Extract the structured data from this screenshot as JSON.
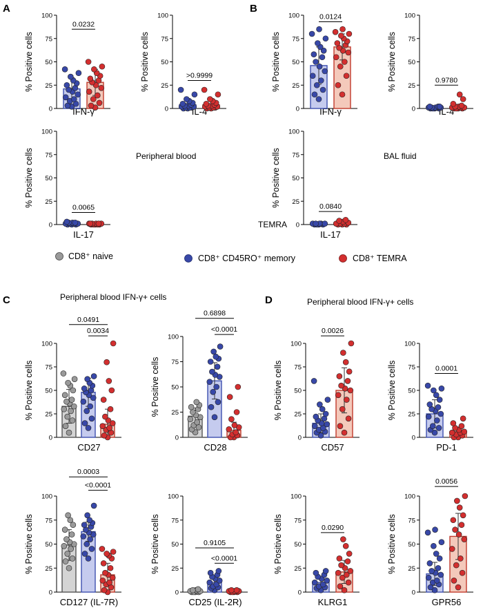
{
  "colors": {
    "naive_fill": "#d4d4d4",
    "naive_edge": "#555555",
    "naive_dot": "#9a9a9a",
    "memory_fill": "#c5cbee",
    "memory_edge": "#3d4fae",
    "memory_dot": "#3848a8",
    "temra_fill": "#f4c9bb",
    "temra_edge": "#c0392b",
    "temra_dot": "#d32f2f"
  },
  "panel_labels": {
    "a": "A",
    "b": "B",
    "c": "C",
    "d": "D"
  },
  "annotations": {
    "peripheral_blood": "Peripheral blood",
    "bal_fluid": "BAL fluid",
    "c_title": "Peripheral blood IFN-γ+ cells",
    "d_title": "Peripheral blood IFN-γ+ cells",
    "stray_temra": "TEMRA"
  },
  "legend": [
    {
      "label": "CD8⁺ naive",
      "color": "#9a9a9a"
    },
    {
      "label": "CD8⁺ CD45RO⁺ memory",
      "color": "#3848a8"
    },
    {
      "label": "CD8⁺ TEMRA",
      "color": "#d32f2f"
    }
  ],
  "chart_data": [
    {
      "id": "a-ifng",
      "type": "bar",
      "panel": "A",
      "ylabel": "% Positive cells",
      "xlabel": "IFN-γ",
      "ylim": [
        0,
        100
      ],
      "yticks": [
        0,
        25,
        50,
        75,
        100
      ],
      "groups": [
        "memory",
        "temra"
      ],
      "bar_means": [
        21,
        28
      ],
      "sd": [
        12,
        14
      ],
      "points": [
        [
          2,
          3,
          5,
          8,
          10,
          12,
          15,
          18,
          20,
          22,
          25,
          27,
          30,
          34,
          38,
          42
        ],
        [
          1,
          3,
          6,
          10,
          14,
          18,
          22,
          25,
          28,
          30,
          32,
          35,
          38,
          42,
          45,
          50
        ]
      ],
      "comparisons": [
        {
          "from": 0,
          "to": 1,
          "p": "0.0232",
          "y": 85
        }
      ]
    },
    {
      "id": "a-il4",
      "type": "bar",
      "panel": "A",
      "ylabel": "% Positive cells",
      "xlabel": "IL-4",
      "ylim": [
        0,
        100
      ],
      "yticks": [
        0,
        25,
        50,
        75,
        100
      ],
      "groups": [
        "memory",
        "temra"
      ],
      "bar_means": [
        4,
        4
      ],
      "sd": [
        4,
        4
      ],
      "points": [
        [
          0,
          0,
          1,
          1,
          1,
          2,
          2,
          3,
          3,
          4,
          5,
          6,
          8,
          10,
          15,
          20
        ],
        [
          0,
          0,
          1,
          1,
          1,
          2,
          2,
          3,
          3,
          4,
          5,
          6,
          8,
          10,
          15,
          20
        ]
      ],
      "comparisons": [
        {
          "from": 0,
          "to": 1,
          "p": ">0.9999",
          "y": 30
        }
      ]
    },
    {
      "id": "a-il17",
      "type": "bar",
      "panel": "A",
      "ylabel": "% Positive cells",
      "xlabel": "IL-17",
      "ylim": [
        0,
        100
      ],
      "yticks": [
        0,
        25,
        50,
        75,
        100
      ],
      "groups": [
        "memory",
        "temra"
      ],
      "bar_means": [
        1,
        0.5
      ],
      "sd": [
        0.5,
        0.3
      ],
      "points": [
        [
          0,
          0,
          0,
          1,
          1,
          1,
          1,
          2,
          2,
          2,
          3
        ],
        [
          0,
          0,
          0,
          0,
          0,
          1,
          1,
          1,
          1,
          1,
          1
        ]
      ],
      "comparisons": [
        {
          "from": 0,
          "to": 1,
          "p": "0.0065",
          "y": 13
        }
      ]
    },
    {
      "id": "b-ifng",
      "type": "bar",
      "panel": "B",
      "ylabel": "% Positive cells",
      "xlabel": "IFN-γ",
      "ylim": [
        0,
        100
      ],
      "yticks": [
        0,
        25,
        50,
        75,
        100
      ],
      "groups": [
        "memory",
        "temra"
      ],
      "bar_means": [
        46,
        66
      ],
      "sd": [
        20,
        14
      ],
      "points": [
        [
          10,
          15,
          20,
          25,
          30,
          35,
          40,
          45,
          50,
          55,
          58,
          62,
          66,
          70,
          75,
          80,
          85
        ],
        [
          15,
          25,
          35,
          45,
          50,
          55,
          60,
          62,
          65,
          68,
          70,
          72,
          75,
          78,
          80,
          82,
          85
        ]
      ],
      "comparisons": [
        {
          "from": 0,
          "to": 1,
          "p": "0.0124",
          "y": 93
        }
      ]
    },
    {
      "id": "b-il4",
      "type": "bar",
      "panel": "B",
      "ylabel": "% Positive cells",
      "xlabel": "IL-4",
      "ylim": [
        0,
        100
      ],
      "yticks": [
        0,
        25,
        50,
        75,
        100
      ],
      "groups": [
        "memory",
        "temra"
      ],
      "bar_means": [
        1,
        2
      ],
      "sd": [
        0.8,
        2.5
      ],
      "points": [
        [
          0,
          0,
          0,
          0,
          1,
          1,
          1,
          1,
          1,
          2,
          2,
          2
        ],
        [
          0,
          0,
          0,
          0,
          1,
          1,
          1,
          2,
          2,
          3,
          5,
          10,
          15
        ]
      ],
      "comparisons": [
        {
          "from": 0,
          "to": 1,
          "p": "0.9780",
          "y": 25
        }
      ]
    },
    {
      "id": "b-il17",
      "type": "bar",
      "panel": "B",
      "ylabel": "% Positive cells",
      "xlabel": "IL-17",
      "ylim": [
        0,
        100
      ],
      "yticks": [
        0,
        25,
        50,
        75,
        100
      ],
      "groups": [
        "memory",
        "temra"
      ],
      "bar_means": [
        1,
        2
      ],
      "sd": [
        0.5,
        1.5
      ],
      "points": [
        [
          0,
          0,
          0,
          0,
          1,
          1,
          1,
          1,
          1
        ],
        [
          0,
          0,
          0,
          1,
          1,
          1,
          2,
          3,
          4,
          5
        ]
      ],
      "comparisons": [
        {
          "from": 0,
          "to": 1,
          "p": "0.0840",
          "y": 14
        }
      ]
    },
    {
      "id": "c-cd27",
      "type": "bar",
      "panel": "C",
      "ylabel": "% Positive cells",
      "xlabel": "CD27",
      "ylim": [
        0,
        100
      ],
      "yticks": [
        0,
        25,
        50,
        75,
        100
      ],
      "groups": [
        "naive",
        "memory",
        "temra"
      ],
      "bar_means": [
        33,
        48,
        14
      ],
      "sd": [
        18,
        15,
        16
      ],
      "points": [
        [
          5,
          12,
          18,
          22,
          28,
          30,
          33,
          36,
          38,
          40,
          45,
          50,
          55,
          58,
          62,
          68
        ],
        [
          10,
          15,
          20,
          28,
          33,
          38,
          42,
          45,
          48,
          50,
          52,
          55,
          58,
          62,
          65
        ],
        [
          0,
          2,
          5,
          8,
          10,
          12,
          15,
          18,
          22,
          30,
          40,
          50,
          60,
          80,
          100
        ]
      ],
      "comparisons": [
        {
          "from": 0,
          "to": 2,
          "p": "0.0491",
          "y": 120
        },
        {
          "from": 1,
          "to": 2,
          "p": "0.0034",
          "y": 108
        }
      ]
    },
    {
      "id": "c-cd28",
      "type": "bar",
      "panel": "C",
      "ylabel": "% Positive cells",
      "xlabel": "CD28",
      "ylim": [
        0,
        100
      ],
      "yticks": [
        0,
        25,
        50,
        75,
        100
      ],
      "groups": [
        "naive",
        "memory",
        "temra"
      ],
      "bar_means": [
        21,
        56,
        7
      ],
      "sd": [
        8,
        18,
        8
      ],
      "points": [
        [
          5,
          8,
          10,
          12,
          15,
          18,
          20,
          22,
          25,
          28,
          30,
          32,
          35
        ],
        [
          20,
          30,
          35,
          45,
          50,
          55,
          60,
          62,
          65,
          70,
          75,
          78,
          80,
          85,
          90
        ],
        [
          0,
          0,
          2,
          3,
          5,
          8,
          10,
          12,
          18,
          25,
          40,
          50
        ]
      ],
      "comparisons": [
        {
          "from": 0,
          "to": 2,
          "p": "0.6898",
          "y": 118
        },
        {
          "from": 1,
          "to": 2,
          "p": "<0.0001",
          "y": 102
        }
      ]
    },
    {
      "id": "c-cd127",
      "type": "bar",
      "panel": "C",
      "ylabel": "% Positive cells",
      "xlabel": "CD127 (IL-7R)",
      "ylim": [
        0,
        100
      ],
      "yticks": [
        0,
        25,
        50,
        75,
        100
      ],
      "groups": [
        "naive",
        "memory",
        "temra"
      ],
      "bar_means": [
        49,
        63,
        18
      ],
      "sd": [
        16,
        10,
        12
      ],
      "points": [
        [
          25,
          32,
          35,
          40,
          45,
          48,
          50,
          52,
          55,
          60,
          65,
          70,
          75,
          80
        ],
        [
          35,
          40,
          45,
          50,
          55,
          58,
          60,
          62,
          65,
          68,
          70,
          72,
          75,
          80,
          90
        ],
        [
          0,
          2,
          5,
          8,
          10,
          12,
          15,
          18,
          20,
          25,
          30,
          35,
          38,
          40,
          42,
          45
        ]
      ],
      "comparisons": [
        {
          "from": 0,
          "to": 2,
          "p": "0.0003",
          "y": 120
        },
        {
          "from": 1,
          "to": 2,
          "p": "<0.0001",
          "y": 106
        }
      ]
    },
    {
      "id": "c-cd25",
      "type": "bar",
      "panel": "C",
      "ylabel": "% Positive cells",
      "xlabel": "CD25 (IL-2R)",
      "ylim": [
        0,
        100
      ],
      "yticks": [
        0,
        25,
        50,
        75,
        100
      ],
      "groups": [
        "naive",
        "memory",
        "temra"
      ],
      "bar_means": [
        1,
        10,
        1
      ],
      "sd": [
        1,
        5,
        1
      ],
      "points": [
        [
          0,
          0,
          0,
          0,
          1,
          1,
          1,
          2,
          2,
          3
        ],
        [
          2,
          4,
          5,
          6,
          8,
          10,
          12,
          14,
          16,
          18,
          20,
          22
        ],
        [
          0,
          0,
          0,
          0,
          1,
          1,
          1,
          1,
          2,
          2
        ]
      ],
      "comparisons": [
        {
          "from": 0,
          "to": 2,
          "p": "0.9105",
          "y": 46
        },
        {
          "from": 1,
          "to": 2,
          "p": "<0.0001",
          "y": 30
        }
      ]
    },
    {
      "id": "d-cd57",
      "type": "bar",
      "panel": "D",
      "ylabel": "% Positive cells",
      "xlabel": "CD57",
      "ylim": [
        0,
        100
      ],
      "yticks": [
        0,
        25,
        50,
        75,
        100
      ],
      "groups": [
        "memory",
        "temra"
      ],
      "bar_means": [
        15,
        50
      ],
      "sd": [
        10,
        24
      ],
      "points": [
        [
          2,
          5,
          6,
          8,
          10,
          12,
          14,
          15,
          18,
          20,
          22,
          25,
          30,
          35,
          40,
          60
        ],
        [
          5,
          12,
          20,
          30,
          40,
          45,
          50,
          52,
          55,
          60,
          65,
          70,
          80,
          90,
          100
        ]
      ],
      "comparisons": [
        {
          "from": 0,
          "to": 1,
          "p": "0.0026",
          "y": 108
        }
      ]
    },
    {
      "id": "d-pd1",
      "type": "bar",
      "panel": "D",
      "ylabel": "% Positive cells",
      "xlabel": "PD-1",
      "ylim": [
        0,
        100
      ],
      "yticks": [
        0,
        25,
        50,
        75,
        100
      ],
      "groups": [
        "memory",
        "temra"
      ],
      "bar_means": [
        25,
        6
      ],
      "sd": [
        15,
        5
      ],
      "points": [
        [
          5,
          8,
          10,
          12,
          18,
          22,
          25,
          28,
          30,
          32,
          35,
          40,
          45,
          50,
          52,
          55
        ],
        [
          0,
          0,
          2,
          3,
          5,
          5,
          6,
          8,
          10,
          12,
          15,
          20
        ]
      ],
      "comparisons": [
        {
          "from": 0,
          "to": 1,
          "p": "0.0001",
          "y": 68
        }
      ]
    },
    {
      "id": "d-klrg1",
      "type": "bar",
      "panel": "D",
      "ylabel": "% Positive cells",
      "xlabel": "KLRG1",
      "ylim": [
        0,
        100
      ],
      "yticks": [
        0,
        25,
        50,
        75,
        100
      ],
      "groups": [
        "memory",
        "temra"
      ],
      "bar_means": [
        10,
        21
      ],
      "sd": [
        6,
        12
      ],
      "points": [
        [
          2,
          4,
          5,
          6,
          8,
          10,
          12,
          14,
          16,
          18,
          20,
          22
        ],
        [
          2,
          6,
          10,
          15,
          18,
          20,
          22,
          25,
          28,
          32,
          35,
          40,
          48,
          55
        ]
      ],
      "comparisons": [
        {
          "from": 0,
          "to": 1,
          "p": "0.0290",
          "y": 62
        }
      ]
    },
    {
      "id": "d-gpr56",
      "type": "bar",
      "panel": "D",
      "ylabel": "% Positive cells",
      "xlabel": "GPR56",
      "ylim": [
        0,
        100
      ],
      "yticks": [
        0,
        25,
        50,
        75,
        100
      ],
      "groups": [
        "memory",
        "temra"
      ],
      "bar_means": [
        19,
        58
      ],
      "sd": [
        12,
        24
      ],
      "points": [
        [
          2,
          5,
          8,
          10,
          12,
          15,
          18,
          20,
          22,
          25,
          30,
          35,
          40,
          48,
          52,
          62,
          65
        ],
        [
          5,
          12,
          20,
          28,
          35,
          45,
          55,
          60,
          65,
          70,
          75,
          80,
          88,
          95,
          100
        ]
      ],
      "comparisons": [
        {
          "from": 0,
          "to": 1,
          "p": "0.0056",
          "y": 110
        }
      ]
    }
  ]
}
